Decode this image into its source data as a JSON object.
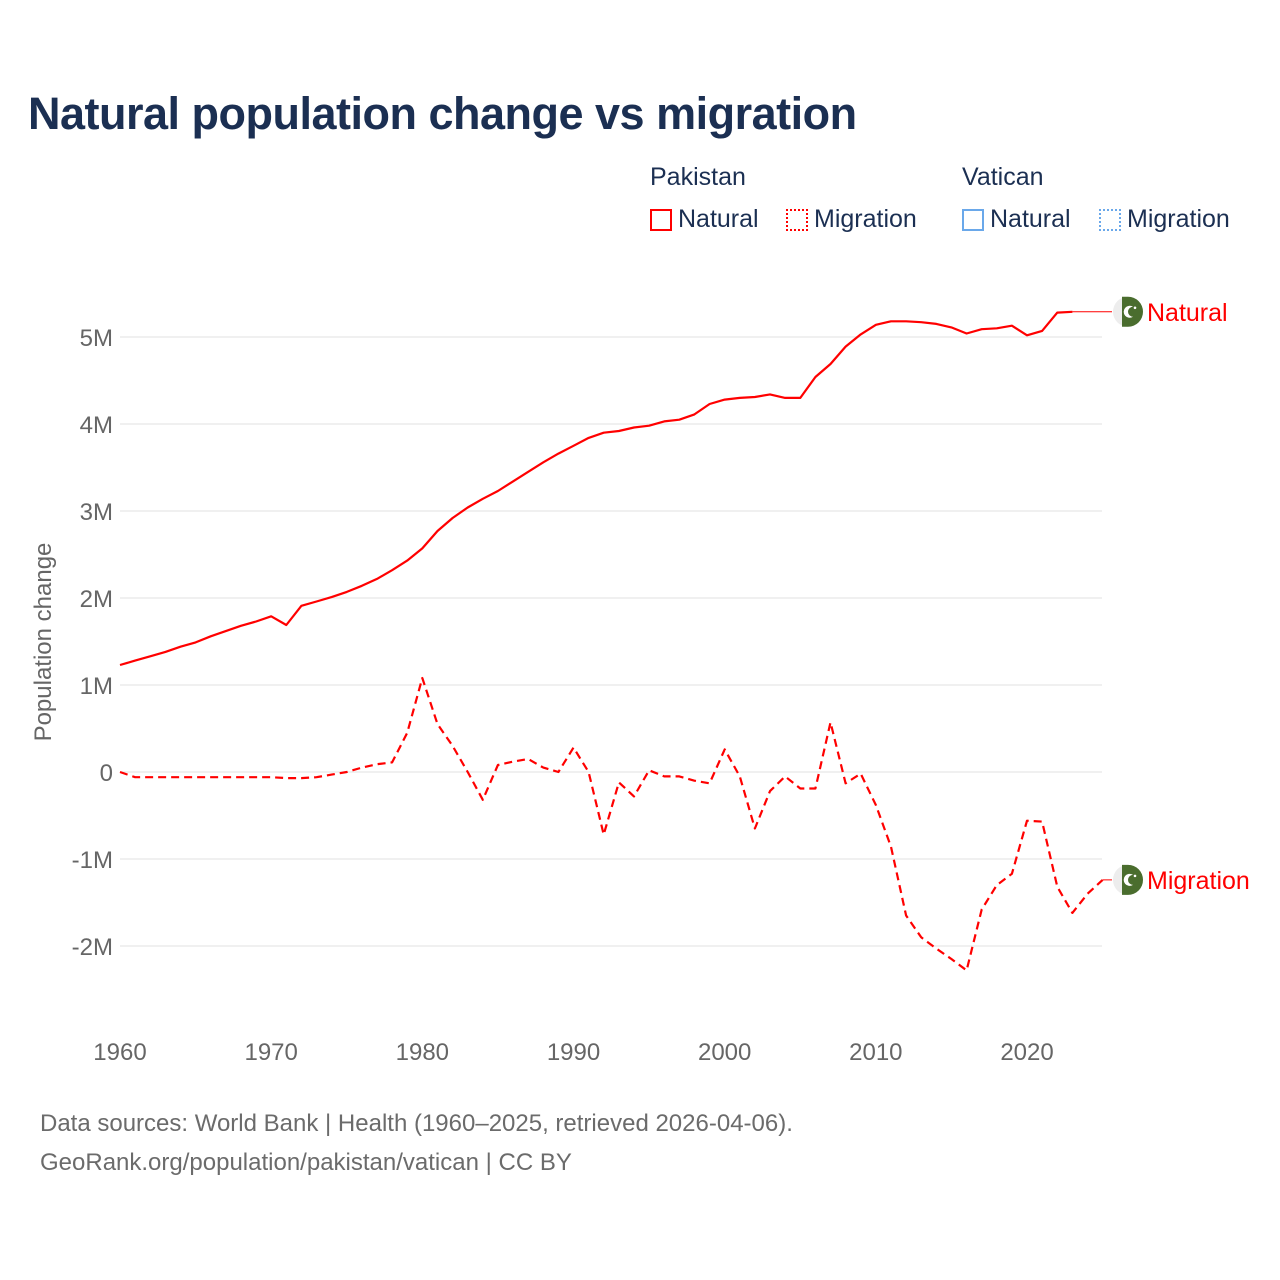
{
  "title": "Natural population change vs migration",
  "legend": {
    "groups": [
      {
        "country": "Pakistan",
        "items": [
          {
            "label": "Natural",
            "style": "solid",
            "color": "#ff0000"
          },
          {
            "label": "Migration",
            "style": "dotted",
            "color": "#ff0000"
          }
        ]
      },
      {
        "country": "Vatican",
        "items": [
          {
            "label": "Natural",
            "style": "solid",
            "color": "#4a90e2"
          },
          {
            "label": "Migration",
            "style": "dotted",
            "color": "#4a90e2"
          }
        ]
      }
    ]
  },
  "footer": {
    "line1": "Data sources: World Bank | Health (1960–2025, retrieved 2026-04-06).",
    "line2": "GeoRank.org/population/pakistan/vatican | CC BY"
  },
  "chart_data": {
    "type": "line",
    "title": "Natural population change vs migration",
    "xlabel": "",
    "ylabel": "Population change",
    "xlim": [
      1960,
      2025
    ],
    "ylim": [
      -2.6,
      5.5
    ],
    "y_unit": "millions",
    "yticks": [
      {
        "v": 5,
        "label": "5M"
      },
      {
        "v": 4,
        "label": "4M"
      },
      {
        "v": 3,
        "label": "3M"
      },
      {
        "v": 2,
        "label": "2M"
      },
      {
        "v": 1,
        "label": "1M"
      },
      {
        "v": 0,
        "label": "0"
      },
      {
        "v": -1,
        "label": "-1M"
      },
      {
        "v": -2,
        "label": "-2M"
      }
    ],
    "xticks": [
      {
        "v": 1960,
        "label": "1960"
      },
      {
        "v": 1970,
        "label": "1970"
      },
      {
        "v": 1980,
        "label": "1980"
      },
      {
        "v": 1990,
        "label": "1990"
      },
      {
        "v": 2000,
        "label": "2000"
      },
      {
        "v": 2010,
        "label": "2010"
      },
      {
        "v": 2020,
        "label": "2020"
      }
    ],
    "grid": true,
    "series": [
      {
        "name": "Pakistan Natural",
        "end_label": "Natural",
        "color": "#ff0000",
        "dash": false,
        "x_start": 1960,
        "values": [
          1.23,
          1.28,
          1.33,
          1.38,
          1.44,
          1.49,
          1.56,
          1.62,
          1.68,
          1.73,
          1.79,
          1.69,
          1.91,
          1.96,
          2.01,
          2.07,
          2.14,
          2.22,
          2.32,
          2.43,
          2.57,
          2.77,
          2.92,
          3.04,
          3.14,
          3.23,
          3.34,
          3.45,
          3.56,
          3.66,
          3.75,
          3.84,
          3.9,
          3.92,
          3.96,
          3.98,
          4.03,
          4.05,
          4.11,
          4.23,
          4.28,
          4.3,
          4.31,
          4.34,
          4.3,
          4.3,
          4.54,
          4.69,
          4.89,
          5.03,
          5.14,
          5.18,
          5.18,
          5.17,
          5.15,
          5.11,
          5.04,
          5.09,
          5.1,
          5.13,
          5.02,
          5.07,
          5.28,
          5.29
        ]
      },
      {
        "name": "Pakistan Migration",
        "end_label": "Migration",
        "color": "#ff0000",
        "dash": true,
        "x_start": 1960,
        "values": [
          0.0,
          -0.06,
          -0.06,
          -0.06,
          -0.06,
          -0.06,
          -0.06,
          -0.06,
          -0.06,
          -0.06,
          -0.06,
          -0.07,
          -0.07,
          -0.06,
          -0.03,
          0.0,
          0.05,
          0.09,
          0.11,
          0.45,
          1.08,
          0.55,
          0.3,
          0.0,
          -0.32,
          0.08,
          0.12,
          0.15,
          0.05,
          0.0,
          0.28,
          0.0,
          -0.72,
          -0.12,
          -0.28,
          0.02,
          -0.05,
          -0.05,
          -0.1,
          -0.13,
          0.26,
          -0.05,
          -0.65,
          -0.22,
          -0.05,
          -0.19,
          -0.19,
          0.57,
          -0.13,
          -0.02,
          -0.38,
          -0.86,
          -1.65,
          -1.9,
          -2.03,
          -2.15,
          -2.28,
          -1.58,
          -1.3,
          -1.17,
          -0.56,
          -0.57,
          -1.32,
          -1.62,
          -1.4,
          -1.24
        ]
      }
    ]
  }
}
